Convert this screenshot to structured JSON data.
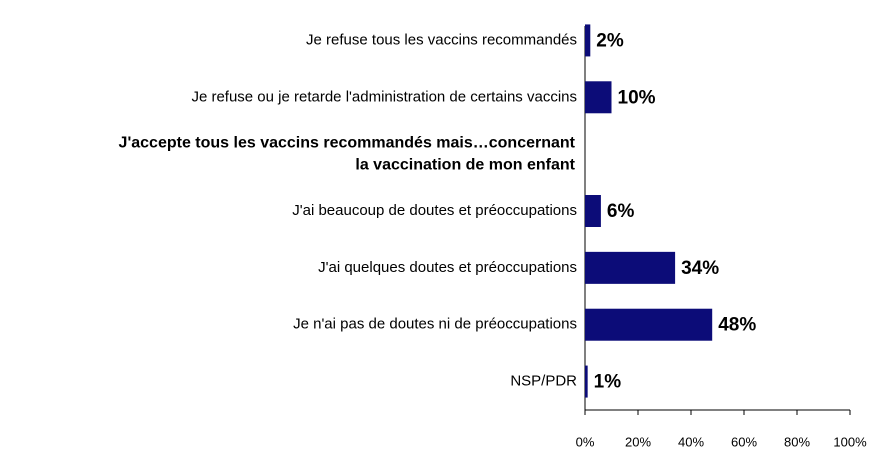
{
  "chart_data": {
    "type": "bar",
    "orientation": "horizontal",
    "categories": [
      "Je refuse tous les vaccins recommandés",
      "Je refuse ou je retarde l'administration de certains vaccins",
      [
        "J'accepte tous les vaccins recommandés mais…concernant",
        "la vaccination de mon enfant"
      ],
      "J'ai beaucoup de doutes et préoccupations",
      "J'ai quelques doutes et préoccupations",
      "Je n'ai pas de doutes ni de préoccupations",
      "NSP/PDR"
    ],
    "values": [
      2,
      10,
      null,
      6,
      34,
      48,
      1
    ],
    "value_labels": [
      "2%",
      "10%",
      null,
      "6%",
      "34%",
      "48%",
      "1%"
    ],
    "color": "#0c0c78",
    "xlim": [
      0,
      100
    ],
    "xticks": [
      {
        "value": 0,
        "label": "0%"
      },
      {
        "value": 20,
        "label": "20%"
      },
      {
        "value": 40,
        "label": "40%"
      },
      {
        "value": 60,
        "label": "60%"
      },
      {
        "value": 80,
        "label": "80%"
      },
      {
        "value": 100,
        "label": "100%"
      }
    ]
  }
}
